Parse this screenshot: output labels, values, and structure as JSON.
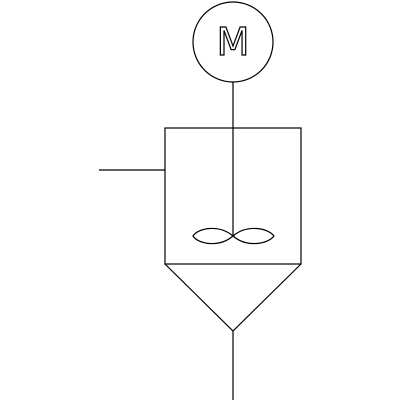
{
  "diagram": {
    "kind": "agitated-vessel-with-conical-bottom",
    "colors": {
      "background": "#ffffff",
      "line": "#000000"
    },
    "motor": {
      "label": "M",
      "symbol": "motor-circle"
    },
    "components": [
      "motor",
      "agitator-shaft",
      "vessel-body",
      "inlet-pipe",
      "impeller",
      "conical-bottom",
      "outlet-pipe"
    ]
  }
}
